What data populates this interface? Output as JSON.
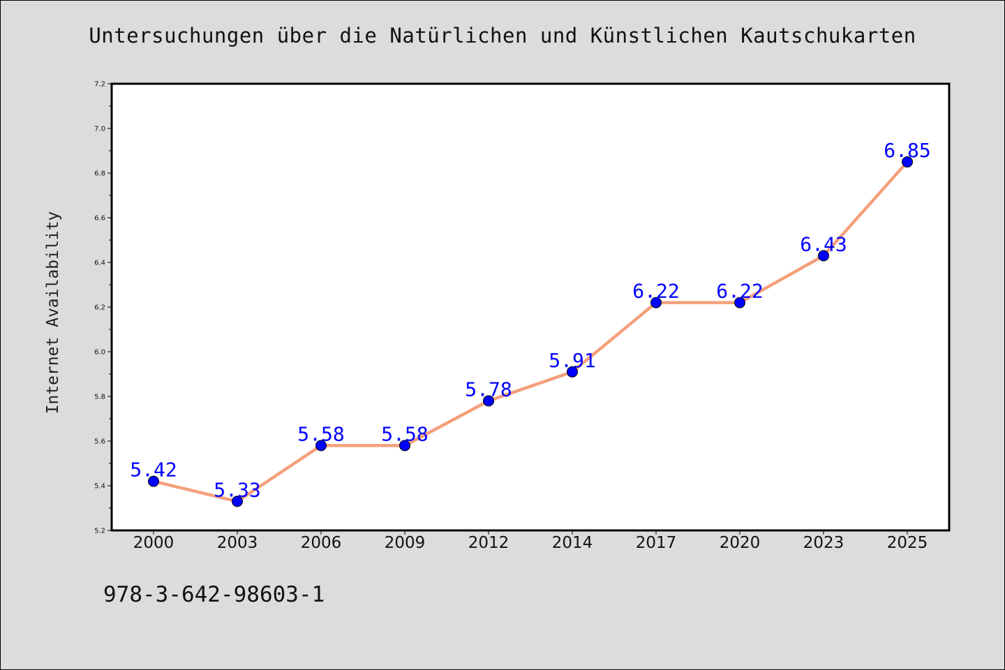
{
  "chart_data": {
    "type": "line",
    "title": "Untersuchungen über die Natürlichen und Künstlichen Kautschukarten",
    "xlabel": "",
    "ylabel": "Internet Availability",
    "categories": [
      "2000",
      "2003",
      "2006",
      "2009",
      "2012",
      "2014",
      "2017",
      "2020",
      "2023",
      "2025"
    ],
    "series": [
      {
        "values": [
          5.42,
          5.33,
          5.58,
          5.58,
          5.78,
          5.91,
          6.22,
          6.22,
          6.43,
          6.85
        ],
        "data_labels": [
          "5.42",
          "5.33",
          "5.58",
          "5.58",
          "5.78",
          "5.91",
          "6.22",
          "6.22",
          "6.43",
          "6.85"
        ],
        "line_color": "#f4a07c",
        "marker_color": "#0000ff",
        "label_color": "#0000ff"
      }
    ],
    "ylim": [
      5.2,
      7.2
    ],
    "yticks": [
      "5.2",
      "5.4",
      "5.6",
      "5.8",
      "6.0",
      "6.2",
      "6.4",
      "6.6",
      "6.8",
      "7.0",
      "7.2"
    ],
    "grid": false,
    "legend": "none"
  },
  "footer": {
    "text": "978-3-642-98603-1"
  },
  "colors": {
    "background": "#dcdcdc",
    "plot_area": "#ffffff"
  }
}
